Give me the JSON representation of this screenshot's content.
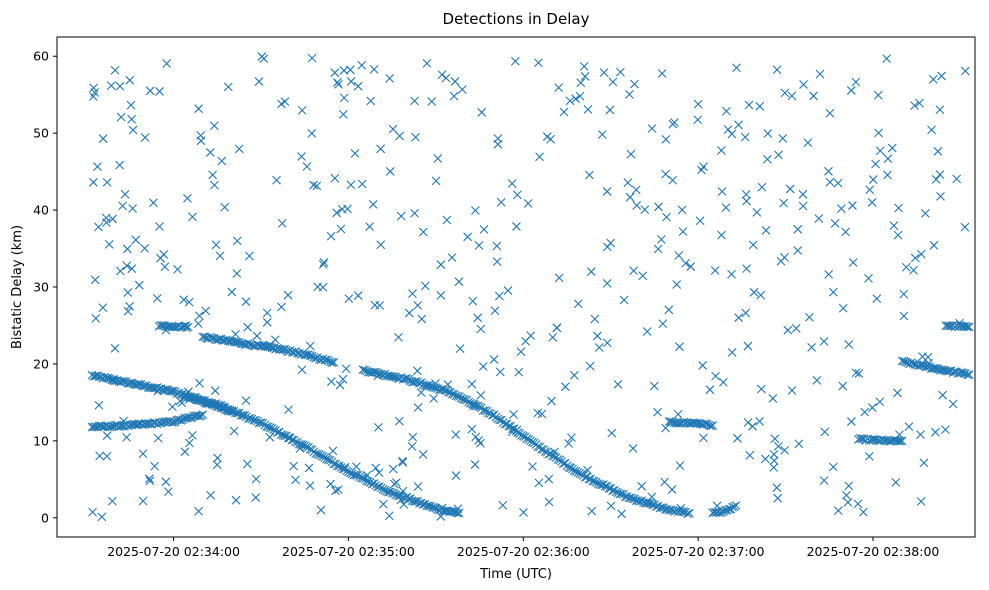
{
  "chart_data": {
    "type": "scatter",
    "title": "Detections in Delay",
    "xlabel": "Time (UTC)",
    "ylabel": "Bistatic Delay (km)",
    "x_axis": {
      "kind": "time",
      "range": [
        "2025-07-20 02:33:20",
        "2025-07-20 02:38:35"
      ],
      "ticks": [
        "2025-07-20 02:34:00",
        "2025-07-20 02:35:00",
        "2025-07-20 02:36:00",
        "2025-07-20 02:37:00",
        "2025-07-20 02:38:00"
      ]
    },
    "y_axis": {
      "range": [
        -2.5,
        62.5
      ],
      "ticks": [
        0,
        10,
        20,
        30,
        40,
        50,
        60
      ]
    },
    "grid": false,
    "marker": "x",
    "color": "#1f77b4",
    "tracks": [
      {
        "points": [
          [
            "2025-07-20 02:33:32",
            18.5
          ],
          [
            "2025-07-20 02:33:45",
            17.5
          ],
          [
            "2025-07-20 02:34:00",
            16.4
          ],
          [
            "2025-07-20 02:34:15",
            14.7
          ],
          [
            "2025-07-20 02:34:30",
            12.3
          ],
          [
            "2025-07-20 02:34:45",
            9.3
          ],
          [
            "2025-07-20 02:35:00",
            6.0
          ],
          [
            "2025-07-20 02:35:15",
            3.2
          ],
          [
            "2025-07-20 02:35:30",
            1.2
          ],
          [
            "2025-07-20 02:35:38",
            0.6
          ]
        ]
      },
      {
        "points": [
          [
            "2025-07-20 02:33:32",
            11.8
          ],
          [
            "2025-07-20 02:33:45",
            12.0
          ],
          [
            "2025-07-20 02:34:00",
            12.5
          ],
          [
            "2025-07-20 02:34:10",
            13.4
          ]
        ]
      },
      {
        "points": [
          [
            "2025-07-20 02:34:05",
            15.8
          ],
          [
            "2025-07-20 02:34:15",
            14.5
          ],
          [
            "2025-07-20 02:34:20",
            13.8
          ]
        ]
      },
      {
        "points": [
          [
            "2025-07-20 02:34:10",
            23.5
          ],
          [
            "2025-07-20 02:34:25",
            22.6
          ],
          [
            "2025-07-20 02:34:40",
            21.7
          ],
          [
            "2025-07-20 02:34:55",
            20.2
          ]
        ]
      },
      {
        "points": [
          [
            "2025-07-20 02:33:55",
            25.0
          ],
          [
            "2025-07-20 02:34:05",
            24.8
          ]
        ]
      },
      {
        "points": [
          [
            "2025-07-20 02:35:05",
            19.2
          ],
          [
            "2025-07-20 02:35:20",
            18.0
          ],
          [
            "2025-07-20 02:35:35",
            16.3
          ],
          [
            "2025-07-20 02:35:50",
            13.3
          ],
          [
            "2025-07-20 02:36:05",
            9.3
          ],
          [
            "2025-07-20 02:36:20",
            5.6
          ],
          [
            "2025-07-20 02:36:35",
            2.8
          ],
          [
            "2025-07-20 02:36:50",
            1.0
          ],
          [
            "2025-07-20 02:36:57",
            0.6
          ]
        ]
      },
      {
        "points": [
          [
            "2025-07-20 02:36:50",
            12.4
          ],
          [
            "2025-07-20 02:37:00",
            12.3
          ],
          [
            "2025-07-20 02:37:05",
            12.0
          ]
        ]
      },
      {
        "points": [
          [
            "2025-07-20 02:37:05",
            0.6
          ],
          [
            "2025-07-20 02:37:10",
            0.9
          ],
          [
            "2025-07-20 02:37:13",
            1.6
          ]
        ]
      },
      {
        "points": [
          [
            "2025-07-20 02:37:55",
            10.2
          ],
          [
            "2025-07-20 02:38:05",
            10.0
          ],
          [
            "2025-07-20 02:38:10",
            10.0
          ]
        ]
      },
      {
        "points": [
          [
            "2025-07-20 02:38:10",
            20.3
          ],
          [
            "2025-07-20 02:38:20",
            19.5
          ],
          [
            "2025-07-20 02:38:33",
            18.6
          ]
        ]
      },
      {
        "points": [
          [
            "2025-07-20 02:38:25",
            25.0
          ],
          [
            "2025-07-20 02:38:33",
            24.8
          ]
        ]
      }
    ],
    "scattered_detections": {
      "x_range": [
        "2025-07-20 02:33:32",
        "2025-07-20 02:38:33"
      ],
      "y_range": [
        0,
        60
      ],
      "count": 560
    }
  }
}
